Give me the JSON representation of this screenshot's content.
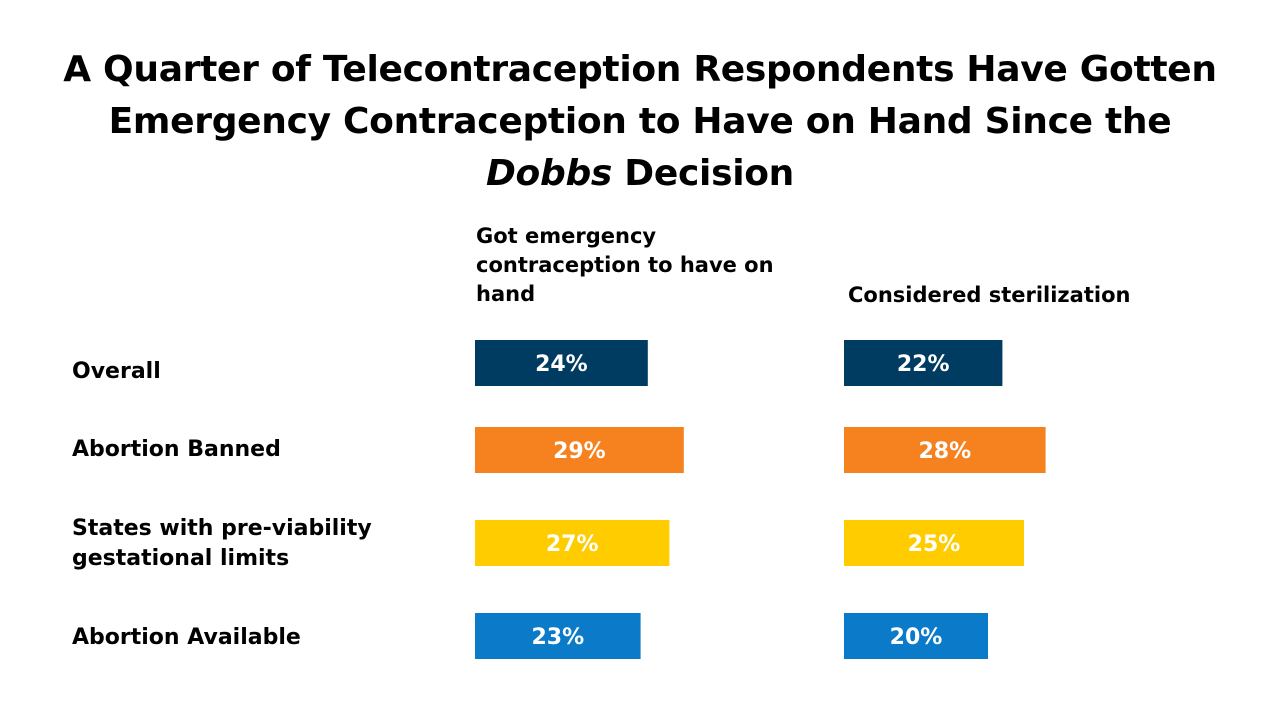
{
  "title": {
    "part1": "A Quarter of Telecontraception Respondents Have Gotten Emergency Contraception to Have on Hand Since the ",
    "emphasis": "Dobbs",
    "part2": " Decision"
  },
  "colors": {
    "Overall": "#003b61",
    "Abortion Banned": "#f5821f",
    "States with pre-viability gestational limits": "#ffcc00",
    "Abortion Available": "#0a7ac9",
    "label_text": "#ffffff"
  },
  "chart_data": {
    "type": "bar",
    "orientation": "horizontal",
    "categories": [
      "Overall",
      "Abortion Banned",
      "States with pre-viability gestational limits",
      "Abortion Available"
    ],
    "series": [
      {
        "name": "Got emergency contraception to have on hand",
        "values": [
          24,
          29,
          27,
          23
        ]
      },
      {
        "name": "Considered sterilization",
        "values": [
          22,
          28,
          25,
          20
        ]
      }
    ],
    "unit": "%",
    "data_labels": [
      [
        "24%",
        "29%",
        "27%",
        "23%"
      ],
      [
        "22%",
        "28%",
        "25%",
        "20%"
      ]
    ],
    "grid": false,
    "legend": "none"
  }
}
